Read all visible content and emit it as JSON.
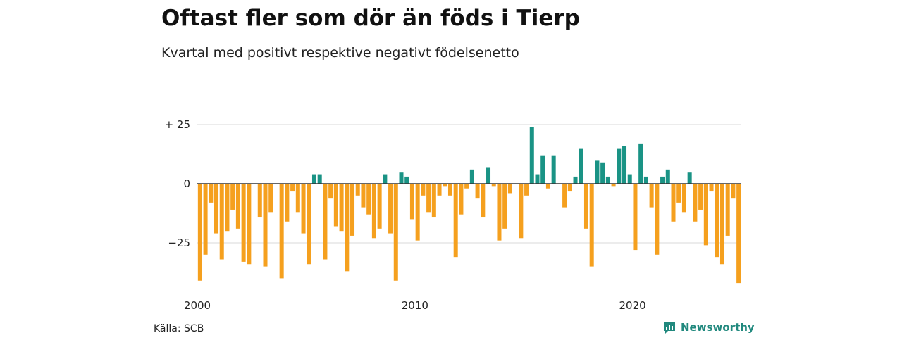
{
  "title": "Oftast fler som dör än föds i Tierp",
  "subtitle": "Kvartal med positivt respektive negativt födelsenetto",
  "source": "Källa: SCB",
  "brand": "Newsworthy",
  "colors": {
    "positive": "#1a9385",
    "negative": "#f5a01e",
    "grid": "#d9d9d9",
    "baseline": "#333333",
    "brand": "#21897e"
  },
  "chart_data": {
    "type": "bar",
    "title": "Oftast fler som dör än föds i Tierp",
    "subtitle": "Kvartal med positivt respektive negativt födelsenetto",
    "x_start": "2000 Q1",
    "x_ticks": [
      {
        "label": "2000",
        "index": 0
      },
      {
        "label": "2010",
        "index": 40
      },
      {
        "label": "2020",
        "index": 80
      }
    ],
    "y_ticks": [
      {
        "label": "+ 25",
        "value": 25
      },
      {
        "label": "0",
        "value": 0
      },
      {
        "label": "−25",
        "value": -25
      }
    ],
    "ylim": [
      -44,
      26
    ],
    "grid": true,
    "values": [
      -41,
      -30,
      -8,
      -21,
      -32,
      -20,
      -11,
      -19,
      -33,
      -34,
      0,
      -14,
      -35,
      -12,
      0,
      -40,
      -16,
      -3,
      -12,
      -21,
      -34,
      4,
      4,
      -32,
      -6,
      -18,
      -20,
      -37,
      -22,
      -5,
      -10,
      -13,
      -23,
      -19,
      4,
      -21,
      -41,
      5,
      3,
      -15,
      -24,
      -5,
      -12,
      -14,
      -5,
      -1,
      -5,
      -31,
      -13,
      -2,
      6,
      -6,
      -14,
      7,
      -1,
      -24,
      -19,
      -4,
      0,
      -23,
      -5,
      24,
      4,
      12,
      -2,
      12,
      0,
      -10,
      -3,
      3,
      15,
      -19,
      -35,
      10,
      9,
      3,
      -1,
      15,
      16,
      4,
      -28,
      17,
      3,
      -10,
      -30,
      3,
      6,
      -16,
      -8,
      -12,
      5,
      -16,
      -11,
      -26,
      -3,
      -31,
      -34,
      -22,
      -6,
      -42
    ]
  }
}
